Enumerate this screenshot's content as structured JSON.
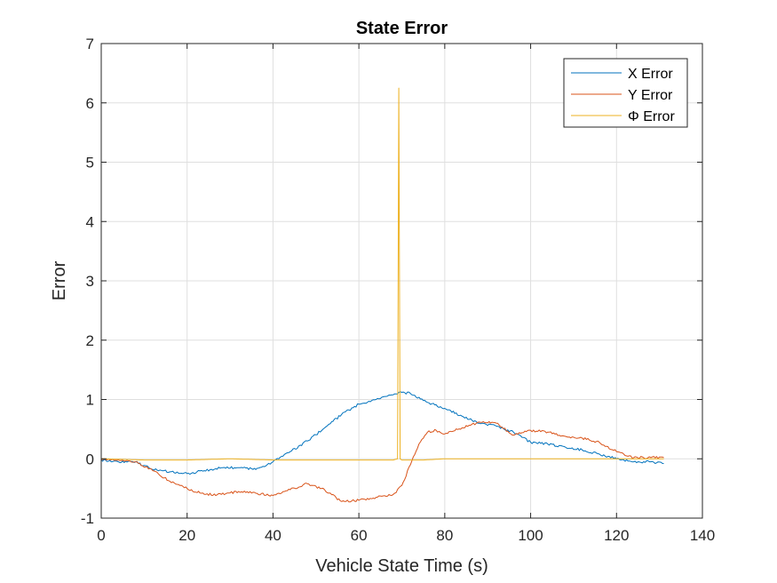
{
  "chart_data": {
    "type": "line",
    "title": "State Error",
    "xlabel": "Vehicle State Time (s)",
    "ylabel": "Error",
    "xlim": [
      0,
      140
    ],
    "ylim": [
      -1,
      7
    ],
    "xticks": [
      "0",
      "20",
      "40",
      "60",
      "80",
      "100",
      "120",
      "140"
    ],
    "yticks": [
      "-1",
      "0",
      "1",
      "2",
      "3",
      "4",
      "5",
      "6",
      "7"
    ],
    "grid": true,
    "legend_position": "top-right",
    "series": [
      {
        "name": "X Error",
        "color": "#0072BD",
        "x": [
          0,
          4,
          8,
          12,
          16,
          20,
          24,
          28,
          32,
          36,
          40,
          44,
          48,
          52,
          56,
          60,
          64,
          68,
          70,
          72,
          76,
          80,
          84,
          88,
          92,
          96,
          100,
          104,
          108,
          112,
          116,
          120,
          124,
          128,
          131
        ],
        "y": [
          -0.02,
          -0.05,
          -0.05,
          -0.18,
          -0.22,
          -0.25,
          -0.2,
          -0.15,
          -0.15,
          -0.18,
          -0.05,
          0.12,
          0.3,
          0.52,
          0.75,
          0.92,
          1.0,
          1.08,
          1.12,
          1.1,
          0.95,
          0.85,
          0.72,
          0.6,
          0.55,
          0.45,
          0.28,
          0.25,
          0.2,
          0.15,
          0.08,
          0.0,
          -0.05,
          -0.05,
          -0.08
        ]
      },
      {
        "name": "Y Error",
        "color": "#D95319",
        "x": [
          0,
          4,
          8,
          12,
          16,
          20,
          24,
          28,
          32,
          36,
          40,
          44,
          48,
          52,
          56,
          60,
          64,
          68,
          70,
          72,
          74,
          76,
          78,
          80,
          84,
          88,
          92,
          96,
          100,
          104,
          108,
          112,
          116,
          120,
          124,
          128,
          131
        ],
        "y": [
          0.0,
          -0.02,
          -0.05,
          -0.2,
          -0.38,
          -0.5,
          -0.6,
          -0.6,
          -0.55,
          -0.58,
          -0.62,
          -0.52,
          -0.42,
          -0.52,
          -0.72,
          -0.7,
          -0.65,
          -0.6,
          -0.45,
          -0.1,
          0.25,
          0.45,
          0.48,
          0.42,
          0.52,
          0.62,
          0.6,
          0.4,
          0.48,
          0.45,
          0.38,
          0.35,
          0.28,
          0.12,
          0.02,
          0.02,
          0.02
        ]
      },
      {
        "name": "Φ Error",
        "color": "#EDB120",
        "x": [
          0,
          10,
          20,
          30,
          40,
          50,
          60,
          68,
          69,
          69.3,
          69.6,
          70,
          75,
          80,
          90,
          100,
          110,
          120,
          131
        ],
        "y": [
          0.0,
          -0.02,
          -0.02,
          0.0,
          -0.02,
          -0.02,
          -0.02,
          -0.02,
          0.0,
          6.25,
          0.0,
          -0.02,
          -0.02,
          0.0,
          0.0,
          0.0,
          0.0,
          0.0,
          0.0
        ]
      }
    ]
  }
}
